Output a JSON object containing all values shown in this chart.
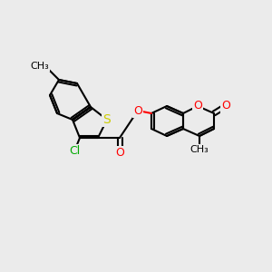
{
  "background_color": "#ebebeb",
  "bond_color": "#000000",
  "bond_width": 1.5,
  "atom_colors": {
    "O": "#ff0000",
    "S": "#cccc00",
    "Cl": "#00aa00",
    "C": "#000000"
  },
  "font_size": 9,
  "fig_size": [
    3.0,
    3.0
  ],
  "dpi": 100
}
